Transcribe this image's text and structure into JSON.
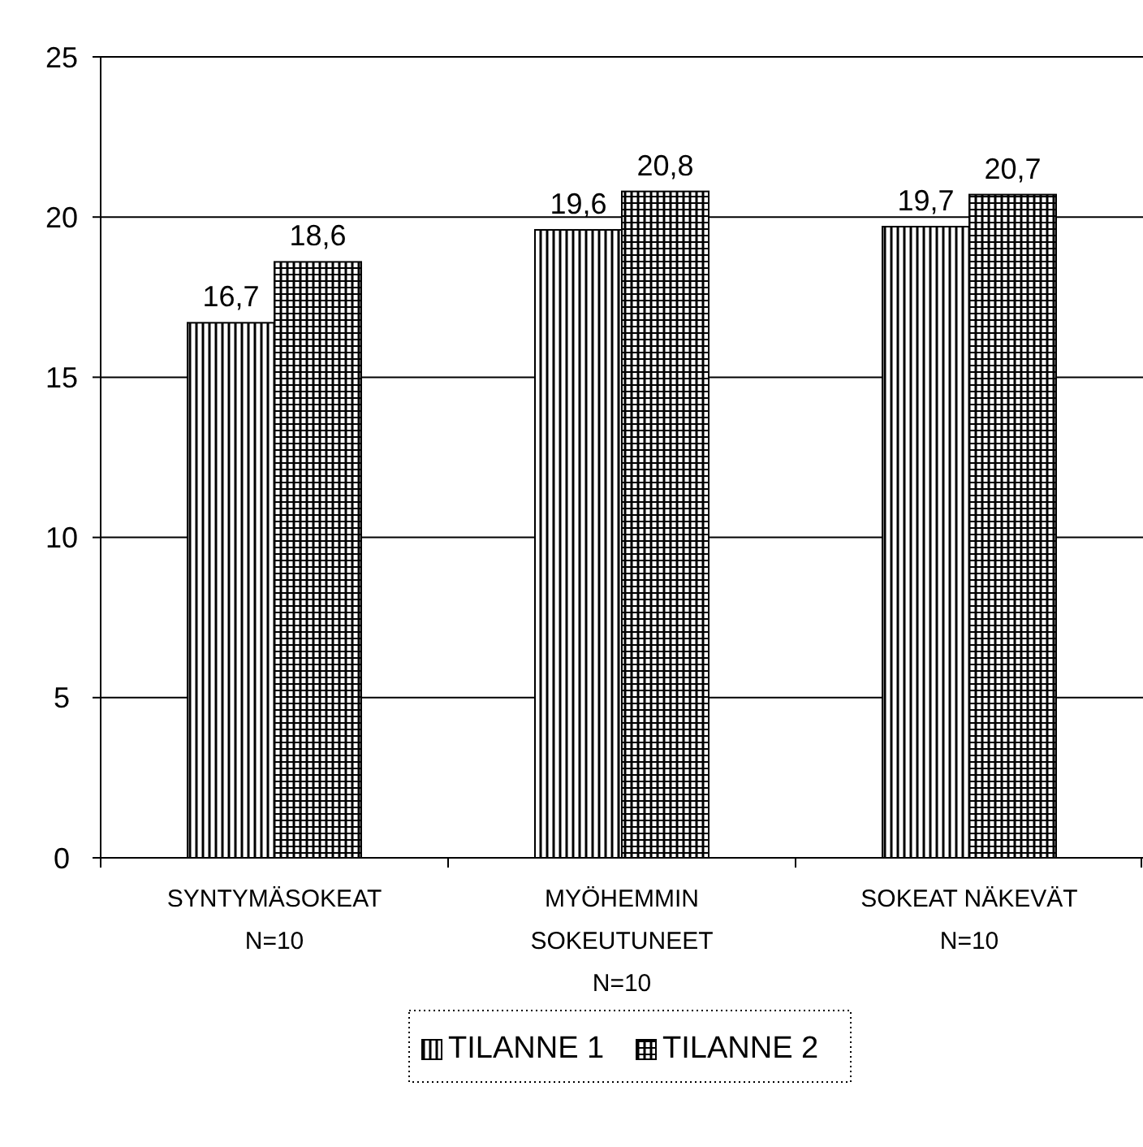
{
  "chart_data": {
    "type": "bar",
    "categories": [
      "SYNTYMÄSOKEAT\nN=10",
      "MYÖHEMMIN\nSOKEUTUNEET\nN=10",
      "SOKEAT NÄKEVÄT\nN=10"
    ],
    "series": [
      {
        "name": "TILANNE 1",
        "color": "#000000",
        "values": [
          16.7,
          19.6,
          19.7
        ],
        "value_labels": [
          "16,7",
          "19,6",
          "19,7"
        ]
      },
      {
        "name": "TILANNE 2",
        "color": "#000000",
        "values": [
          18.6,
          20.8,
          20.7
        ],
        "value_labels": [
          "18,6",
          "20,8",
          "20,7"
        ]
      }
    ],
    "ylim": [
      0,
      25
    ],
    "yticks": [
      0,
      5,
      10,
      15,
      20,
      25
    ],
    "grid": "y",
    "legend": "bottom"
  }
}
